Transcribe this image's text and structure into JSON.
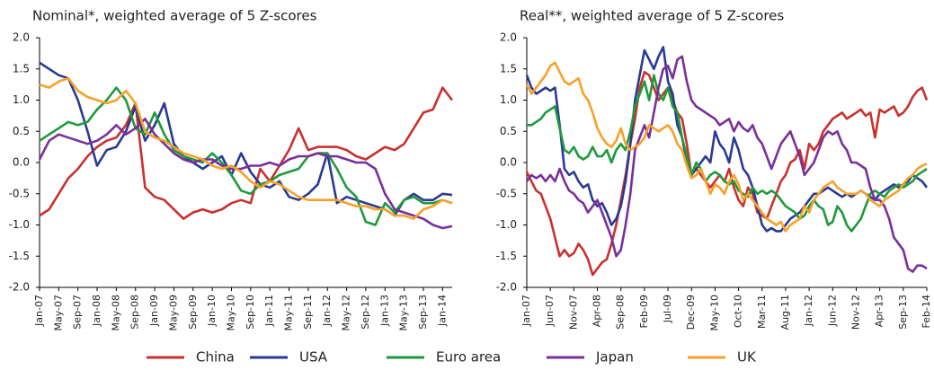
{
  "chart_data": [
    {
      "type": "line",
      "title": "Nominal*, weighted average of 5 Z-scores",
      "categories": [
        "Jan-07",
        null,
        "May-07",
        null,
        "Sep-07",
        null,
        "Jan-08",
        null,
        "May-08",
        null,
        "Sep-08",
        null,
        "Jan-09",
        null,
        "May-09",
        null,
        "Sep-09",
        null,
        "Jan-10",
        null,
        "May-10",
        null,
        "Sep-10",
        null,
        "Jan-11",
        null,
        "May-11",
        null,
        "Sep-11",
        null,
        "Jan-12",
        null,
        "May-12",
        null,
        "Sep-12",
        null,
        "Jan-13",
        null,
        "May-13",
        null,
        "Sep-13",
        null,
        "Jan-14",
        null
      ],
      "ylim": [
        -2,
        2
      ],
      "yticks": [
        {
          "value": 2,
          "label": "2.0"
        },
        {
          "value": 1.5,
          "label": "1.5"
        },
        {
          "value": 1,
          "label": "1.0"
        },
        {
          "value": 0.5,
          "label": "0.5"
        },
        {
          "value": 0,
          "label": "0.0"
        },
        {
          "value": -0.5,
          "label": "-0.5"
        },
        {
          "value": -1,
          "label": "-1.0"
        },
        {
          "value": -1.5,
          "label": "-1.5"
        },
        {
          "value": -2,
          "label": "-2.0"
        }
      ],
      "series": [
        {
          "name": "China",
          "color": "#c8312e",
          "values": [
            -0.85,
            -0.75,
            -0.5,
            -0.25,
            -0.1,
            0.1,
            0.25,
            0.35,
            0.4,
            0.6,
            0.95,
            -0.4,
            -0.55,
            -0.6,
            -0.75,
            -0.9,
            -0.8,
            -0.75,
            -0.8,
            -0.75,
            -0.65,
            -0.6,
            -0.65,
            -0.1,
            -0.3,
            -0.05,
            0.2,
            0.55,
            0.2,
            0.25,
            0.25,
            0.25,
            0.2,
            0.1,
            0.05,
            0.15,
            0.25,
            0.2,
            0.3,
            0.55,
            0.8,
            0.85,
            1.2,
            1.0
          ]
        },
        {
          "name": "USA",
          "color": "#2a3a93",
          "values": [
            1.6,
            1.5,
            1.4,
            1.35,
            1.0,
            0.5,
            -0.05,
            0.2,
            0.25,
            0.5,
            0.9,
            0.35,
            0.6,
            0.95,
            0.3,
            0.1,
            0.0,
            -0.1,
            0.0,
            0.1,
            -0.2,
            0.15,
            -0.15,
            -0.35,
            -0.4,
            -0.3,
            -0.55,
            -0.6,
            -0.5,
            -0.35,
            0.15,
            -0.65,
            -0.55,
            -0.6,
            -0.65,
            -0.7,
            -0.75,
            -0.85,
            -0.6,
            -0.5,
            -0.6,
            -0.6,
            -0.5,
            -0.52
          ]
        },
        {
          "name": "Euro area",
          "color": "#1e9a3c",
          "values": [
            0.35,
            0.45,
            0.55,
            0.65,
            0.6,
            0.65,
            0.85,
            1.0,
            1.2,
            1.0,
            0.55,
            0.45,
            0.8,
            0.45,
            0.2,
            0.1,
            0.05,
            0.0,
            0.15,
            0.0,
            -0.2,
            -0.45,
            -0.5,
            -0.35,
            -0.3,
            -0.2,
            -0.15,
            -0.1,
            0.1,
            0.15,
            0.15,
            -0.1,
            -0.4,
            -0.55,
            -0.95,
            -1.0,
            -0.65,
            -0.8,
            -0.6,
            -0.55,
            -0.65,
            -0.65,
            -0.6,
            -0.65
          ]
        },
        {
          "name": "Japan",
          "color": "#7a2f9a",
          "values": [
            0.05,
            0.35,
            0.45,
            0.4,
            0.35,
            0.3,
            0.35,
            0.45,
            0.6,
            0.45,
            0.55,
            0.7,
            0.45,
            0.3,
            0.15,
            0.05,
            0.0,
            0.05,
            0.05,
            -0.05,
            -0.1,
            -0.1,
            -0.05,
            -0.05,
            0.0,
            -0.05,
            0.05,
            0.1,
            0.1,
            0.15,
            0.1,
            0.1,
            0.05,
            0.0,
            0.0,
            -0.1,
            -0.5,
            -0.75,
            -0.8,
            -0.85,
            -0.9,
            -1.0,
            -1.05,
            -1.02
          ]
        },
        {
          "name": "UK",
          "color": "#f7a128",
          "values": [
            1.25,
            1.2,
            1.3,
            1.35,
            1.15,
            1.05,
            1.0,
            0.95,
            1.0,
            1.15,
            0.95,
            0.5,
            0.4,
            0.35,
            0.25,
            0.15,
            0.1,
            0.05,
            -0.05,
            -0.1,
            -0.05,
            -0.15,
            -0.3,
            -0.4,
            -0.3,
            -0.35,
            -0.45,
            -0.55,
            -0.6,
            -0.6,
            -0.6,
            -0.6,
            -0.65,
            -0.7,
            -0.7,
            -0.75,
            -0.75,
            -0.85,
            -0.85,
            -0.9,
            -0.75,
            -0.7,
            -0.6,
            -0.65
          ]
        }
      ]
    },
    {
      "type": "line",
      "title": "Real**, weighted average of 5 Z-scores",
      "categories": [
        "Jan-07",
        null,
        null,
        null,
        null,
        "Jun-07",
        null,
        null,
        null,
        null,
        "Nov-07",
        null,
        null,
        null,
        null,
        "Apr-08",
        null,
        null,
        null,
        null,
        "Sep-08",
        null,
        null,
        null,
        null,
        "Feb-09",
        null,
        null,
        null,
        null,
        "Jul-09",
        null,
        null,
        null,
        null,
        "Dec-09",
        null,
        null,
        null,
        null,
        "May-10",
        null,
        null,
        null,
        null,
        "Oct-10",
        null,
        null,
        null,
        null,
        "Mar-11",
        null,
        null,
        null,
        null,
        "Aug-11",
        null,
        null,
        null,
        null,
        "Jan-12",
        null,
        null,
        null,
        null,
        "Jun-12",
        null,
        null,
        null,
        null,
        "Nov-12",
        null,
        null,
        null,
        null,
        "Apr-13",
        null,
        null,
        null,
        null,
        "Sep-13",
        null,
        null,
        null,
        null,
        "Feb-14"
      ],
      "ylim": [
        -2,
        2
      ],
      "yticks": [
        {
          "value": 2,
          "label": "2.0"
        },
        {
          "value": 1.5,
          "label": "1.5"
        },
        {
          "value": 1,
          "label": "1.0"
        },
        {
          "value": 0.5,
          "label": "0.5"
        },
        {
          "value": 0,
          "label": "0.0"
        },
        {
          "value": -0.5,
          "label": "-0.5"
        },
        {
          "value": -1,
          "label": "-1.0"
        },
        {
          "value": -1.5,
          "label": "-1.5"
        },
        {
          "value": -2,
          "label": "-2.0"
        }
      ],
      "series": [
        {
          "color": "#c8312e",
          "values": [
            -0.15,
            -0.3,
            -0.45,
            -0.5,
            -0.7,
            -0.9,
            -1.2,
            -1.5,
            -1.4,
            -1.5,
            -1.45,
            -1.3,
            -1.4,
            -1.55,
            -1.8,
            -1.7,
            -1.6,
            -1.55,
            -1.3,
            -1.0,
            -0.6,
            -0.2,
            0.3,
            0.7,
            1.2,
            1.45,
            1.4,
            1.2,
            1.0,
            1.1,
            1.2,
            1.0,
            0.8,
            0.7,
            0.3,
            -0.2,
            -0.1,
            -0.2,
            -0.3,
            -0.4,
            -0.3,
            -0.2,
            -0.3,
            -0.1,
            -0.4,
            -0.6,
            -0.7,
            -0.4,
            -0.5,
            -0.8,
            -0.85,
            -0.9,
            -0.7,
            -0.5,
            -0.3,
            -0.2,
            0.0,
            0.05,
            0.2,
            -0.1,
            0.3,
            0.2,
            0.3,
            0.5,
            0.6,
            0.7,
            0.75,
            0.8,
            0.7,
            0.75,
            0.8,
            0.85,
            0.75,
            0.8,
            0.4,
            0.85,
            0.8,
            0.85,
            0.9,
            0.75,
            0.8,
            0.9,
            1.05,
            1.15,
            1.2,
            1.0
          ]
        },
        {
          "color": "#2a3a93",
          "values": [
            1.4,
            1.2,
            1.1,
            1.15,
            1.2,
            1.15,
            1.2,
            0.6,
            -0.1,
            -0.2,
            -0.15,
            -0.3,
            -0.4,
            -0.35,
            -0.6,
            -0.7,
            -0.65,
            -0.8,
            -1.0,
            -0.9,
            -0.7,
            -0.3,
            0.3,
            1.0,
            1.4,
            1.8,
            1.65,
            1.5,
            1.7,
            1.85,
            1.3,
            1.1,
            0.6,
            0.4,
            0.0,
            -0.2,
            -0.1,
            0.0,
            0.1,
            0.0,
            0.5,
            0.3,
            0.2,
            0.0,
            0.4,
            0.2,
            -0.1,
            -0.2,
            -0.4,
            -0.7,
            -1.0,
            -1.1,
            -1.05,
            -1.1,
            -1.1,
            -1.0,
            -0.9,
            -0.85,
            -0.8,
            -0.7,
            -0.6,
            -0.5,
            -0.5,
            -0.45,
            -0.4,
            -0.45,
            -0.5,
            -0.55,
            -0.5,
            -0.55,
            -0.5,
            -0.45,
            -0.5,
            -0.55,
            -0.6,
            -0.5,
            -0.45,
            -0.4,
            -0.35,
            -0.4,
            -0.35,
            -0.3,
            -0.2,
            -0.25,
            -0.3,
            -0.4
          ]
        },
        {
          "color": "#1e9a3c",
          "values": [
            0.6,
            0.6,
            0.65,
            0.7,
            0.8,
            0.85,
            0.9,
            0.55,
            0.2,
            0.15,
            0.25,
            0.1,
            0.05,
            0.1,
            0.25,
            0.1,
            0.1,
            0.2,
            0.0,
            0.2,
            0.3,
            0.2,
            0.5,
            0.9,
            1.1,
            1.3,
            1.0,
            1.4,
            1.1,
            1.0,
            1.2,
            0.9,
            0.8,
            0.4,
            0.1,
            -0.2,
            0.0,
            -0.1,
            -0.3,
            -0.2,
            -0.15,
            -0.2,
            -0.3,
            -0.35,
            -0.3,
            -0.45,
            -0.5,
            -0.55,
            -0.4,
            -0.5,
            -0.45,
            -0.5,
            -0.45,
            -0.5,
            -0.6,
            -0.7,
            -0.75,
            -0.8,
            -0.9,
            -0.85,
            -0.7,
            -0.6,
            -0.7,
            -0.75,
            -1.0,
            -0.95,
            -0.7,
            -0.8,
            -1.0,
            -1.1,
            -1.0,
            -0.9,
            -0.7,
            -0.5,
            -0.45,
            -0.5,
            -0.55,
            -0.45,
            -0.4,
            -0.35,
            -0.4,
            -0.35,
            -0.3,
            -0.2,
            -0.15,
            -0.1
          ]
        },
        {
          "color": "#7a2f9a",
          "values": [
            -0.3,
            -0.2,
            -0.25,
            -0.2,
            -0.3,
            -0.2,
            -0.3,
            -0.1,
            -0.3,
            -0.45,
            -0.5,
            -0.6,
            -0.65,
            -0.8,
            -0.7,
            -0.6,
            -0.8,
            -1.0,
            -1.2,
            -1.5,
            -1.4,
            -1.0,
            -0.5,
            0.2,
            0.4,
            0.6,
            0.4,
            0.8,
            1.2,
            1.5,
            1.55,
            1.35,
            1.65,
            1.7,
            1.3,
            1.0,
            0.9,
            0.85,
            0.8,
            0.75,
            0.7,
            0.6,
            0.65,
            0.7,
            0.5,
            0.65,
            0.55,
            0.5,
            0.6,
            0.4,
            0.3,
            0.1,
            -0.1,
            0.1,
            0.3,
            0.4,
            0.5,
            0.3,
            0.1,
            -0.2,
            -0.1,
            0.0,
            0.2,
            0.4,
            0.5,
            0.45,
            0.5,
            0.3,
            0.2,
            0.0,
            0.0,
            -0.05,
            -0.1,
            -0.4,
            -0.6,
            -0.6,
            -0.7,
            -0.9,
            -1.2,
            -1.3,
            -1.4,
            -1.7,
            -1.75,
            -1.65,
            -1.65,
            -1.7
          ]
        },
        {
          "color": "#f7a128",
          "values": [
            1.25,
            1.1,
            1.2,
            1.3,
            1.4,
            1.55,
            1.6,
            1.45,
            1.3,
            1.25,
            1.3,
            1.35,
            1.1,
            1.0,
            0.8,
            0.55,
            0.4,
            0.3,
            0.25,
            0.35,
            0.55,
            0.3,
            0.2,
            0.25,
            0.3,
            0.4,
            0.6,
            0.55,
            0.5,
            0.55,
            0.6,
            0.5,
            0.3,
            0.2,
            -0.05,
            -0.25,
            -0.2,
            -0.1,
            -0.3,
            -0.5,
            -0.35,
            -0.4,
            -0.5,
            -0.3,
            -0.2,
            -0.35,
            -0.6,
            -0.5,
            -0.6,
            -0.7,
            -0.8,
            -0.9,
            -0.95,
            -1.0,
            -0.95,
            -1.1,
            -1.0,
            -0.95,
            -0.9,
            -0.7,
            -0.8,
            -0.6,
            -0.5,
            -0.4,
            -0.35,
            -0.3,
            -0.4,
            -0.45,
            -0.5,
            -0.5,
            -0.5,
            -0.45,
            -0.5,
            -0.6,
            -0.65,
            -0.7,
            -0.6,
            -0.55,
            -0.5,
            -0.45,
            -0.35,
            -0.25,
            -0.2,
            -0.1,
            -0.05,
            -0.02
          ]
        }
      ]
    }
  ]
}
